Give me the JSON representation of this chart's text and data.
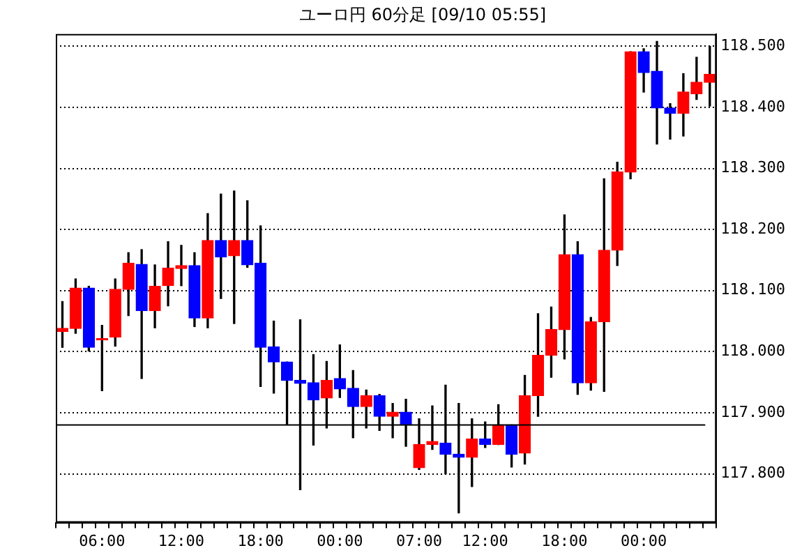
{
  "chart_data": {
    "type": "candlestick",
    "title": "ユーロ円 60分足 [09/10 05:55]",
    "categories": [
      null,
      null,
      null,
      "06:00",
      null,
      null,
      null,
      null,
      null,
      "12:00",
      null,
      null,
      null,
      null,
      null,
      "18:00",
      null,
      null,
      null,
      null,
      null,
      "00:00",
      null,
      null,
      null,
      null,
      null,
      "07:00",
      null,
      null,
      null,
      null,
      "12:00",
      null,
      null,
      null,
      null,
      null,
      "18:00",
      null,
      null,
      null,
      null,
      null,
      "00:00",
      null,
      null,
      null,
      null,
      null
    ],
    "ohlc": [
      [
        118.033,
        118.082,
        118.007,
        118.038
      ],
      [
        118.038,
        118.119,
        118.03,
        118.104
      ],
      [
        118.104,
        118.107,
        118.001,
        118.007
      ],
      [
        118.019,
        118.043,
        117.936,
        118.019
      ],
      [
        118.024,
        118.119,
        118.009,
        118.102
      ],
      [
        118.102,
        118.162,
        118.059,
        118.145
      ],
      [
        118.143,
        118.167,
        117.956,
        118.067
      ],
      [
        118.067,
        118.142,
        118.039,
        118.107
      ],
      [
        118.108,
        118.18,
        118.075,
        118.137
      ],
      [
        118.136,
        118.174,
        118.108,
        118.141
      ],
      [
        118.141,
        118.162,
        118.041,
        118.055
      ],
      [
        118.055,
        118.226,
        118.039,
        118.182
      ],
      [
        118.182,
        118.258,
        118.087,
        118.155
      ],
      [
        118.157,
        118.263,
        118.046,
        118.182
      ],
      [
        118.182,
        118.247,
        118.138,
        118.142
      ],
      [
        118.145,
        118.206,
        117.943,
        118.007
      ],
      [
        118.008,
        118.05,
        117.932,
        117.983
      ],
      [
        117.983,
        117.983,
        117.88,
        117.953
      ],
      [
        117.953,
        118.052,
        117.774,
        117.948
      ],
      [
        117.949,
        117.995,
        117.847,
        117.921
      ],
      [
        117.924,
        117.984,
        117.875,
        117.953
      ],
      [
        117.956,
        118.011,
        117.925,
        117.939
      ],
      [
        117.94,
        117.969,
        117.859,
        117.91
      ],
      [
        117.91,
        117.937,
        117.875,
        117.928
      ],
      [
        117.928,
        117.93,
        117.871,
        117.894
      ],
      [
        117.894,
        117.915,
        117.859,
        117.901
      ],
      [
        117.901,
        117.922,
        117.845,
        117.88
      ],
      [
        117.81,
        117.89,
        117.807,
        117.848
      ],
      [
        117.848,
        117.911,
        117.84,
        117.853
      ],
      [
        117.85,
        117.945,
        117.8,
        117.832
      ],
      [
        117.832,
        117.915,
        117.736,
        117.827
      ],
      [
        117.827,
        117.89,
        117.779,
        117.857
      ],
      [
        117.857,
        117.885,
        117.843,
        117.848
      ],
      [
        117.848,
        117.913,
        117.848,
        117.88
      ],
      [
        117.88,
        117.88,
        117.811,
        117.832
      ],
      [
        117.834,
        117.961,
        117.816,
        117.928
      ],
      [
        117.928,
        118.062,
        117.894,
        117.994
      ],
      [
        117.994,
        118.073,
        117.958,
        118.036
      ],
      [
        118.036,
        118.224,
        117.988,
        118.159
      ],
      [
        118.159,
        118.18,
        117.93,
        117.949
      ],
      [
        117.949,
        118.056,
        117.937,
        118.049
      ],
      [
        118.049,
        118.283,
        117.935,
        118.166
      ],
      [
        118.166,
        118.31,
        118.141,
        118.294
      ],
      [
        118.294,
        118.491,
        118.283,
        118.491
      ],
      [
        118.491,
        118.496,
        118.425,
        118.457
      ],
      [
        118.459,
        118.508,
        118.34,
        118.399
      ],
      [
        118.399,
        118.406,
        118.348,
        118.39
      ],
      [
        118.39,
        118.455,
        118.353,
        118.425
      ],
      [
        118.422,
        118.482,
        118.413,
        118.441
      ],
      [
        118.441,
        118.5,
        118.402,
        118.454
      ]
    ],
    "colors": [
      "#ff0000",
      "#ff0000",
      "#0000ff",
      "#ff0000",
      "#ff0000",
      "#ff0000",
      "#0000ff",
      "#ff0000",
      "#ff0000",
      "#ff0000",
      "#0000ff",
      "#ff0000",
      "#0000ff",
      "#ff0000",
      "#0000ff",
      "#0000ff",
      "#0000ff",
      "#0000ff",
      "#0000ff",
      "#0000ff",
      "#ff0000",
      "#0000ff",
      "#0000ff",
      "#ff0000",
      "#0000ff",
      "#ff0000",
      "#0000ff",
      "#ff0000",
      "#ff0000",
      "#0000ff",
      "#0000ff",
      "#ff0000",
      "#0000ff",
      "#ff0000",
      "#0000ff",
      "#ff0000",
      "#ff0000",
      "#ff0000",
      "#ff0000",
      "#0000ff",
      "#ff0000",
      "#ff0000",
      "#ff0000",
      "#ff0000",
      "#0000ff",
      "#0000ff",
      "#0000ff",
      "#ff0000",
      "#ff0000",
      "#ff0000"
    ],
    "ylim": [
      117.72,
      118.52
    ],
    "yticks": [
      {
        "value": 117.8,
        "label": "117.800"
      },
      {
        "value": 117.9,
        "label": "117.900"
      },
      {
        "value": 118.0,
        "label": "118.000"
      },
      {
        "value": 118.1,
        "label": "118.100"
      },
      {
        "value": 118.2,
        "label": "118.200"
      },
      {
        "value": 118.3,
        "label": "118.300"
      },
      {
        "value": 118.4,
        "label": "118.400"
      },
      {
        "value": 118.5,
        "label": "118.500"
      }
    ],
    "grid": "y",
    "ref_lines": [
      {
        "axis": "y",
        "value": 117.88,
        "label": null,
        "color": "#000000"
      }
    ]
  }
}
